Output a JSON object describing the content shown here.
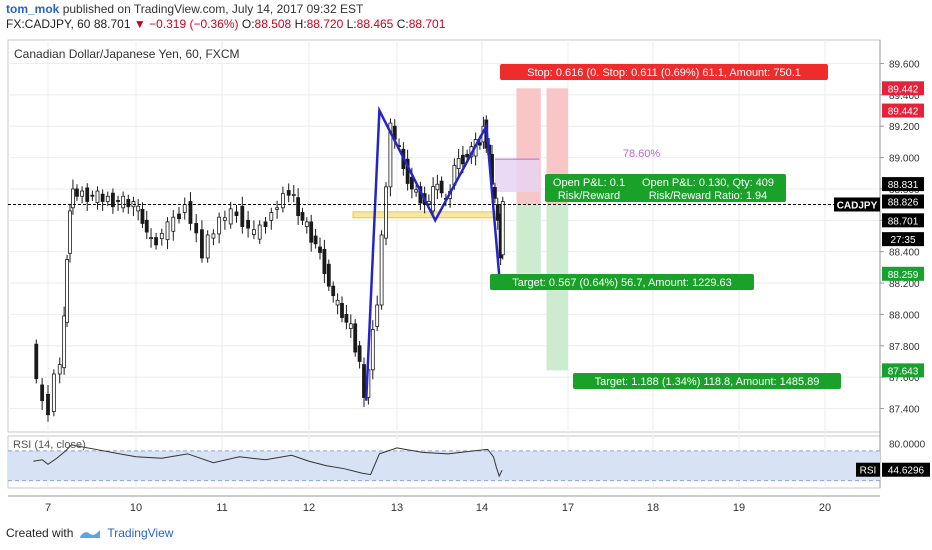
{
  "header": {
    "author": "tom_mok",
    "published": "published on TradingView.com, July 14, 2017 09:32 EST",
    "symbol": "FX:CADJPY, 60",
    "last": "88.701",
    "change": "−0.319 (−0.36%)",
    "o_label": "O:",
    "o": "88.508",
    "h_label": "H:",
    "h": "88.720",
    "l_label": "L:",
    "l": "88.465",
    "c_label": "C:",
    "c": "88.701"
  },
  "chart_data": {
    "type": "candlestick",
    "title": "Canadian Dollar/Japanese Yen, 60, FXCM",
    "ylim": [
      87.25,
      89.75
    ],
    "y_ticks": [
      "89.600",
      "89.400",
      "89.200",
      "89.000",
      "88.800",
      "88.600",
      "88.400",
      "88.200",
      "88.000",
      "87.800",
      "87.600",
      "87.400"
    ],
    "x_ticks": [
      "7",
      "10",
      "11",
      "12",
      "13",
      "14",
      "17",
      "18",
      "19",
      "20"
    ],
    "x_tick_days": [
      7,
      10,
      11,
      12,
      13,
      14,
      17,
      18,
      19,
      20
    ],
    "price_path": [
      [
        6.5,
        87.85
      ],
      [
        6.7,
        87.55
      ],
      [
        6.9,
        87.45
      ],
      [
        7.1,
        87.4
      ],
      [
        7.3,
        87.6
      ],
      [
        7.5,
        87.7
      ],
      [
        7.6,
        87.95
      ],
      [
        7.7,
        88.35
      ],
      [
        7.8,
        88.7
      ],
      [
        7.9,
        88.78
      ],
      [
        10.0,
        88.7
      ],
      [
        10.1,
        88.6
      ],
      [
        10.2,
        88.45
      ],
      [
        10.4,
        88.55
      ],
      [
        10.6,
        88.7
      ],
      [
        10.8,
        88.4
      ],
      [
        11.0,
        88.6
      ],
      [
        11.2,
        88.65
      ],
      [
        11.4,
        88.5
      ],
      [
        11.6,
        88.65
      ],
      [
        11.8,
        88.8
      ],
      [
        11.9,
        88.65
      ],
      [
        12.0,
        88.55
      ],
      [
        12.1,
        88.45
      ],
      [
        12.2,
        88.3
      ],
      [
        12.3,
        88.1
      ],
      [
        12.4,
        88.0
      ],
      [
        12.5,
        87.9
      ],
      [
        12.6,
        87.7
      ],
      [
        12.65,
        87.45
      ],
      [
        12.8,
        88.1
      ],
      [
        12.95,
        89.2
      ],
      [
        13.1,
        88.95
      ],
      [
        13.2,
        88.8
      ],
      [
        13.3,
        88.75
      ],
      [
        13.4,
        88.7
      ],
      [
        13.5,
        88.85
      ],
      [
        13.6,
        88.7
      ],
      [
        13.7,
        88.95
      ],
      [
        13.8,
        89.0
      ],
      [
        13.9,
        89.05
      ],
      [
        14.0,
        89.1
      ],
      [
        14.1,
        89.2
      ],
      [
        14.2,
        89.1
      ],
      [
        14.3,
        89.0
      ],
      [
        14.4,
        88.85
      ],
      [
        14.5,
        88.7
      ],
      [
        14.6,
        88.6
      ],
      [
        14.7,
        88.4
      ],
      [
        14.75,
        88.7
      ]
    ],
    "pattern": [
      [
        12.65,
        87.45
      ],
      [
        12.8,
        89.3
      ],
      [
        13.45,
        88.6
      ],
      [
        14.15,
        89.2
      ],
      [
        14.6,
        88.25
      ]
    ],
    "rsi": {
      "label": "RSI (14, close)",
      "value_label": "RSI",
      "value": "44.6296",
      "ylim": [
        20,
        90
      ],
      "ticks": [
        "80.0000"
      ],
      "upper": 70,
      "lower": 30,
      "values": [
        [
          6.5,
          56
        ],
        [
          6.8,
          58
        ],
        [
          7.0,
          52
        ],
        [
          7.3,
          60
        ],
        [
          7.6,
          70
        ],
        [
          7.8,
          78
        ],
        [
          10.0,
          62
        ],
        [
          10.3,
          60
        ],
        [
          10.6,
          66
        ],
        [
          10.9,
          54
        ],
        [
          11.2,
          62
        ],
        [
          11.5,
          58
        ],
        [
          11.8,
          64
        ],
        [
          12.0,
          56
        ],
        [
          12.2,
          50
        ],
        [
          12.4,
          46
        ],
        [
          12.6,
          40
        ],
        [
          12.7,
          38
        ],
        [
          12.8,
          66
        ],
        [
          13.0,
          74
        ],
        [
          13.3,
          68
        ],
        [
          13.6,
          66
        ],
        [
          13.9,
          70
        ],
        [
          14.2,
          72
        ],
        [
          14.4,
          62
        ],
        [
          14.5,
          48
        ],
        [
          14.6,
          36
        ],
        [
          14.7,
          44
        ]
      ]
    },
    "levels": [
      {
        "name": "current-price",
        "value": 88.701,
        "label": "88.701",
        "color": "#000000",
        "dashed": true
      },
      {
        "name": "support-zone",
        "value": 88.635,
        "color": "#e8c74d"
      }
    ],
    "price_tags": [
      {
        "label": "89.442",
        "value": 89.442,
        "color": "#e8213b"
      },
      {
        "label": "89.442",
        "value": 89.3,
        "color": "#e8213b"
      },
      {
        "label": "88.831",
        "value": 88.831,
        "color": "#000000"
      },
      {
        "label": "88.826",
        "value": 88.72,
        "color": "#000000"
      },
      {
        "label": "88.701",
        "value": 88.6,
        "color": "#000000"
      },
      {
        "label": "27:35",
        "value": 88.48,
        "color": "#000000"
      },
      {
        "label": "88.259",
        "value": 88.259,
        "color": "#17a12e"
      },
      {
        "label": "87.643",
        "value": 87.643,
        "color": "#17a12e"
      }
    ],
    "symbol_tag": "CADJPY",
    "fib": {
      "label": "78.60%",
      "value": 88.99,
      "from_day": 14.45,
      "to_day": 16.0,
      "color": "#b86ad4"
    },
    "positions": [
      {
        "from_day": 15.2,
        "to_day": 16.05,
        "entry": 88.7,
        "stop": 89.442,
        "target": 88.259
      },
      {
        "from_day": 16.25,
        "to_day": 17.0,
        "entry": 88.7,
        "stop": 89.442,
        "target": 87.643
      }
    ],
    "labels": {
      "stop": "Stop: 0.616 (0.  Stop: 0.611 (0.69%) 61.1, Amount: 750.1",
      "pl1_line1": "Open P&L: 0.1",
      "pl1_line2": "Risk/Reward",
      "pl2_line1": "Open P&L: 0.130, Qty: 409",
      "pl2_line2": "Risk/Reward Ratio: 1.94",
      "target1": "Target: 0.567 (0.64%) 56.7, Amount: 1229.63",
      "target2": "Target: 1.188 (1.34%) 118.8, Amount: 1485.89"
    }
  },
  "footer": {
    "created": "Created with",
    "brand": "TradingView"
  },
  "colors": {
    "up": "#1a1a1a",
    "down": "#1a1a1a",
    "pattern": "#2525c7",
    "stop_fill": "#f8c6c6",
    "target_fill": "#cdeccf",
    "stop_label": "#ee2c2c",
    "target_label": "#1aa12a",
    "rsi_band": "#d7e2f5",
    "rsi_line": "#333333"
  }
}
